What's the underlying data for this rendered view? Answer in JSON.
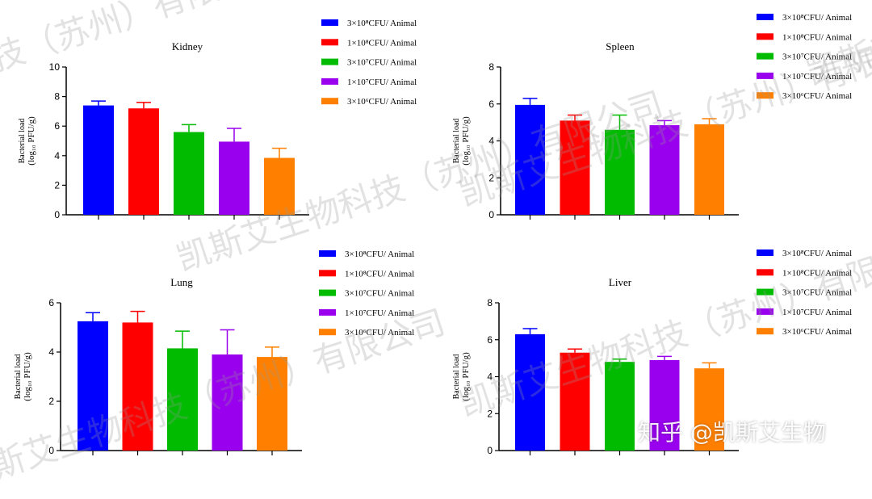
{
  "chart_data": [
    {
      "type": "bar",
      "title": "Kidney",
      "ylabel_line1": "Bacterial load",
      "ylabel_line2": "(log₁₀ PFU/g)",
      "ylim": [
        0,
        10
      ],
      "yticks": [
        0,
        2,
        4,
        6,
        8,
        10
      ],
      "categories": [
        "3×10⁸CFU/ Animal",
        "1×10⁸CFU/ Animal",
        "3×10⁷CFU/ Animal",
        "1×10⁷CFU/ Animal",
        "3×10⁶CFU/ Animal"
      ],
      "values": [
        7.4,
        7.2,
        5.6,
        4.95,
        3.85
      ],
      "errors": [
        0.3,
        0.4,
        0.5,
        0.9,
        0.65
      ]
    },
    {
      "type": "bar",
      "title": "Spleen",
      "ylabel_line1": "Bacterial load",
      "ylabel_line2": "(log₁₀ PFU/g)",
      "ylim": [
        0,
        8
      ],
      "yticks": [
        0,
        2,
        4,
        6,
        8
      ],
      "categories": [
        "3×10⁸CFU/ Animal",
        "1×10⁸CFU/ Animal",
        "3×10⁷CFU/ Animal",
        "1×10⁷CFU/ Animal",
        "3×10⁶CFU/ Animal"
      ],
      "values": [
        5.95,
        5.1,
        4.6,
        4.85,
        4.9
      ],
      "errors": [
        0.35,
        0.3,
        0.8,
        0.25,
        0.3
      ]
    },
    {
      "type": "bar",
      "title": "Lung",
      "ylabel_line1": "Bacterial load",
      "ylabel_line2": "(log₁₀ PFU/g)",
      "ylim": [
        0,
        6
      ],
      "yticks": [
        0,
        2,
        4,
        6
      ],
      "categories": [
        "3×10⁸CFU/ Animal",
        "1×10⁸CFU/ Animal",
        "3×10⁷CFU/ Animal",
        "1×10⁷CFU/ Animal",
        "3×10⁶CFU/ Animal"
      ],
      "values": [
        5.25,
        5.2,
        4.15,
        3.9,
        3.8
      ],
      "errors": [
        0.35,
        0.45,
        0.7,
        1.0,
        0.4
      ]
    },
    {
      "type": "bar",
      "title": "Liver",
      "ylabel_line1": "Bacterial load",
      "ylabel_line2": "(log₁₀ PFU/g)",
      "ylim": [
        0,
        8
      ],
      "yticks": [
        0,
        2,
        4,
        6,
        8
      ],
      "categories": [
        "3×10⁸CFU/ Animal",
        "1×10⁸CFU/ Animal",
        "3×10⁷CFU/ Animal",
        "1×10⁷CFU/ Animal",
        "3×10⁶CFU/ Animal"
      ],
      "values": [
        6.3,
        5.3,
        4.8,
        4.9,
        4.45
      ],
      "errors": [
        0.3,
        0.2,
        0.15,
        0.2,
        0.3
      ]
    }
  ],
  "series_colors": [
    "#0000ff",
    "#ff0000",
    "#00bb00",
    "#9900ee",
    "#ff8000"
  ],
  "watermark": {
    "company": "凯斯艾生物科技（苏州）有限公司",
    "credit": "知乎 @凯斯艾生物"
  }
}
